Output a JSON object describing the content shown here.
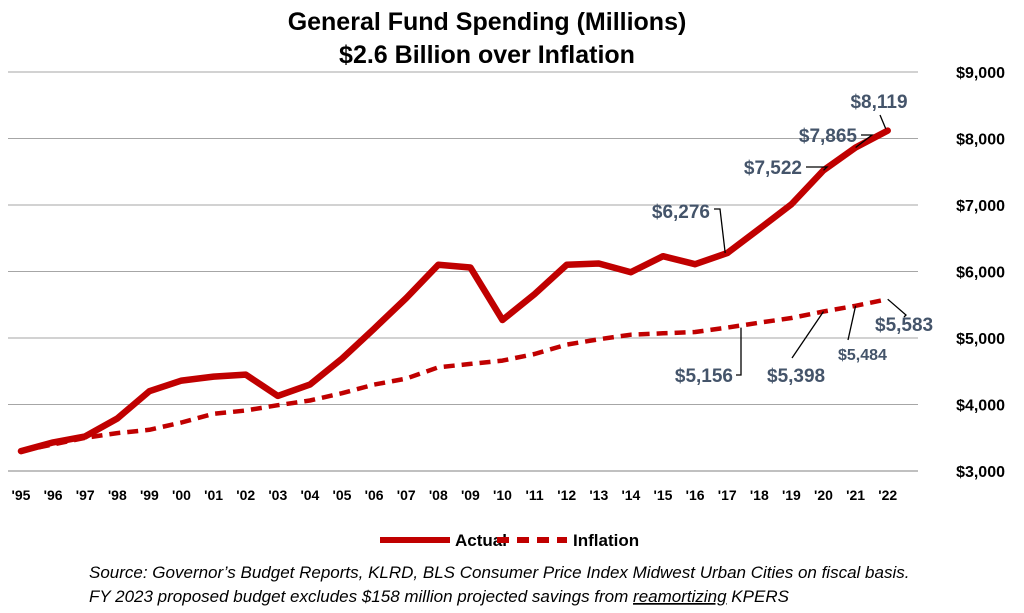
{
  "chart_data": {
    "type": "line",
    "title": "General Fund Spending (Millions)",
    "subtitle": "$2.6 Billion over Inflation",
    "categories": [
      "'95",
      "'96",
      "'97",
      "'98",
      "'99",
      "'00",
      "'01",
      "'02",
      "'03",
      "'04",
      "'05",
      "'06",
      "'07",
      "'08",
      "'09",
      "'10",
      "'11",
      "'12",
      "'13",
      "'14",
      "'15",
      "'16",
      "'17",
      "'18",
      "'19",
      "'20",
      "'21",
      "'22"
    ],
    "ylim": [
      3000,
      9000
    ],
    "yticks": [
      "$3,000",
      "$4,000",
      "$5,000",
      "$6,000",
      "$7,000",
      "$8,000",
      "$9,000"
    ],
    "ytick_values": [
      3000,
      4000,
      5000,
      6000,
      7000,
      8000,
      9000
    ],
    "grid": true,
    "legend_position": "bottom",
    "series": [
      {
        "name": "Actual",
        "color": "#c00000",
        "style": "solid",
        "values": [
          3300,
          3430,
          3520,
          3790,
          4200,
          4360,
          4420,
          4450,
          4130,
          4300,
          4690,
          5140,
          5600,
          6100,
          6060,
          5270,
          5660,
          6100,
          6120,
          5990,
          6230,
          6110,
          6276,
          6640,
          7010,
          7522,
          7865,
          8119
        ]
      },
      {
        "name": "Inflation",
        "color": "#c00000",
        "style": "dashed",
        "values": [
          3300,
          3400,
          3500,
          3570,
          3620,
          3730,
          3860,
          3910,
          3990,
          4060,
          4170,
          4300,
          4390,
          4560,
          4610,
          4660,
          4760,
          4900,
          4980,
          5050,
          5070,
          5090,
          5156,
          5230,
          5300,
          5398,
          5484,
          5583
        ]
      }
    ],
    "annotations": [
      {
        "text": "$8,119"
      },
      {
        "text": "$7,865"
      },
      {
        "text": "$7,522"
      },
      {
        "text": "$6,276"
      },
      {
        "text": "$5,583"
      },
      {
        "text": "$5,484"
      },
      {
        "text": "$5,398"
      },
      {
        "text": "$5,156"
      }
    ]
  },
  "source_line_1": "Source: Governor’s Budget Reports, KLRD, BLS Consumer Price Index Midwest Urban Cities on fiscal basis.",
  "source_line_2_prefix": "FY 2023 proposed budget excludes $158 million projected savings from ",
  "source_line_2_underlined": "reamortizing",
  "source_line_2_suffix": " KPERS"
}
